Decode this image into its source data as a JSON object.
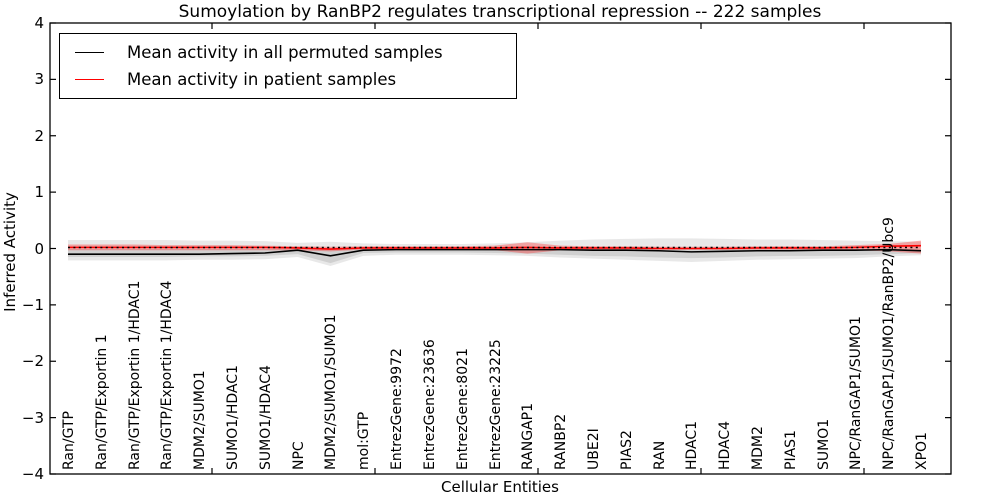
{
  "title": "Sumoylation by RanBP2 regulates transcriptional repression -- 222 samples",
  "axes": {
    "ylabel": "Inferred Activity",
    "xlabel": "Cellular Entities",
    "ytick_labels": [
      "4",
      "3",
      "2",
      "1",
      "0",
      "−1",
      "−2",
      "−3",
      "−4"
    ]
  },
  "legend": {
    "items": [
      {
        "label": "Mean activity in all permuted samples",
        "color": "#000000"
      },
      {
        "label": "Mean activity in patient samples",
        "color": "#ff0000"
      }
    ]
  },
  "chart_data": {
    "type": "line",
    "title": "Sumoylation by RanBP2 regulates transcriptional repression -- 222 samples",
    "xlabel": "Cellular Entities",
    "ylabel": "Inferred Activity",
    "ylim": [
      -4,
      4
    ],
    "yticks": [
      4,
      3,
      2,
      1,
      0,
      -1,
      -2,
      -3,
      -4
    ],
    "grid": false,
    "legend_position": "upper left",
    "zero_line": {
      "style": "dotted",
      "color": "#000000",
      "y": 0
    },
    "categories": [
      "Ran/GTP",
      "Ran/GTP/Exportin 1",
      "Ran/GTP/Exportin 1/HDAC1",
      "Ran/GTP/Exportin 1/HDAC4",
      "MDM2/SUMO1",
      "SUMO1/HDAC1",
      "SUMO1/HDAC4",
      "NPC",
      "MDM2/SUMO1/SUMO1",
      "mol:GTP",
      "EntrezGene:9972",
      "EntrezGene:23636",
      "EntrezGene:8021",
      "EntrezGene:23225",
      "RANGAP1",
      "RANBP2",
      "UBE2I",
      "PIAS2",
      "RAN",
      "HDAC1",
      "HDAC4",
      "MDM2",
      "PIAS1",
      "SUMO1",
      "NPC/RanGAP1/SUMO1",
      "NPC/RanGAP1/SUMO1/RanBP2/Ubc9",
      "XPO1"
    ],
    "series": [
      {
        "name": "Mean activity in all permuted samples",
        "color": "#000000",
        "values": [
          -0.1,
          -0.1,
          -0.1,
          -0.1,
          -0.1,
          -0.09,
          -0.08,
          -0.03,
          -0.13,
          -0.03,
          -0.02,
          -0.02,
          -0.02,
          -0.02,
          -0.02,
          -0.02,
          -0.03,
          -0.03,
          -0.04,
          -0.06,
          -0.05,
          -0.04,
          -0.04,
          -0.03,
          -0.03,
          -0.02,
          -0.04
        ]
      },
      {
        "name": "Mean activity in patient samples",
        "color": "#ff0000",
        "values": [
          0.02,
          0.02,
          0.02,
          0.02,
          0.02,
          0.02,
          0.02,
          0.01,
          -0.01,
          0.01,
          0.01,
          0.01,
          0.01,
          0.01,
          0.02,
          0.01,
          0.01,
          0.01,
          0.0,
          0.0,
          0.0,
          0.01,
          0.01,
          0.01,
          0.02,
          0.04,
          0.05
        ]
      }
    ],
    "bands": [
      {
        "name": "permuted-samples-range-outer",
        "color": "rgba(0,0,0,0.09)",
        "upper": [
          0.15,
          0.15,
          0.15,
          0.15,
          0.14,
          0.14,
          0.13,
          0.1,
          0.12,
          0.09,
          0.08,
          0.08,
          0.08,
          0.09,
          0.11,
          0.14,
          0.16,
          0.17,
          0.18,
          0.18,
          0.17,
          0.16,
          0.16,
          0.15,
          0.14,
          0.13,
          0.12
        ],
        "lower": [
          -0.21,
          -0.21,
          -0.21,
          -0.21,
          -0.2,
          -0.2,
          -0.19,
          -0.15,
          -0.31,
          -0.13,
          -0.11,
          -0.11,
          -0.11,
          -0.12,
          -0.13,
          -0.16,
          -0.18,
          -0.2,
          -0.22,
          -0.24,
          -0.22,
          -0.2,
          -0.19,
          -0.18,
          -0.17,
          -0.14,
          -0.12
        ],
        "lower_extreme_at": "MDM2/SUMO1/SUMO1"
      },
      {
        "name": "permuted-samples-range-inner",
        "color": "rgba(0,0,0,0.10)",
        "upper": [
          -0.01,
          -0.01,
          -0.01,
          -0.01,
          -0.01,
          -0.01,
          -0.01,
          -0.01,
          -0.01,
          -0.01,
          -0.01,
          -0.01,
          -0.01,
          -0.01,
          -0.01,
          -0.01,
          -0.01,
          -0.01,
          -0.01,
          -0.01,
          -0.01,
          -0.01,
          -0.01,
          -0.01,
          -0.01,
          -0.01,
          -0.01
        ],
        "lower": [
          -0.15,
          -0.15,
          -0.15,
          -0.15,
          -0.14,
          -0.14,
          -0.13,
          -0.1,
          -0.26,
          -0.08,
          -0.07,
          -0.07,
          -0.07,
          -0.08,
          -0.09,
          -0.11,
          -0.13,
          -0.14,
          -0.16,
          -0.17,
          -0.16,
          -0.14,
          -0.13,
          -0.13,
          -0.12,
          -0.1,
          -0.08
        ]
      },
      {
        "name": "patient-samples-range",
        "color": "rgba(255,0,0,0.30)",
        "upper": [
          0.07,
          0.07,
          0.07,
          0.06,
          0.06,
          0.06,
          0.05,
          0.04,
          0.03,
          0.04,
          0.04,
          0.04,
          0.04,
          0.05,
          0.11,
          0.05,
          0.04,
          0.04,
          0.03,
          0.03,
          0.03,
          0.04,
          0.04,
          0.04,
          0.06,
          0.08,
          0.14
        ],
        "lower": [
          -0.03,
          -0.03,
          -0.03,
          -0.03,
          -0.03,
          -0.03,
          -0.03,
          -0.03,
          -0.05,
          -0.02,
          -0.02,
          -0.02,
          -0.02,
          -0.03,
          -0.09,
          -0.03,
          -0.02,
          -0.02,
          -0.02,
          -0.02,
          -0.02,
          -0.02,
          -0.02,
          -0.02,
          -0.03,
          -0.05,
          -0.09
        ]
      }
    ]
  }
}
